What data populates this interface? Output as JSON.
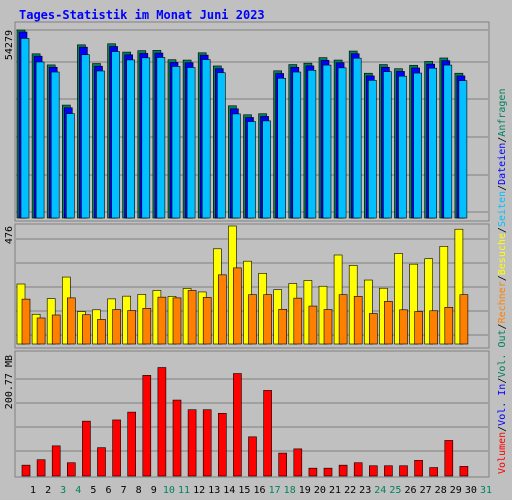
{
  "title": "Tages-Statistik im Monat Juni 2023",
  "colors": {
    "background": "#c0c0c0",
    "title": "#0000ff",
    "anfragen": "#00805f",
    "dateien": "#0000ff",
    "seiten": "#00c0ff",
    "besuche": "#ffff00",
    "rechner": "#ff8000",
    "volumen": "#ff0000",
    "weekend_label": "#00805f",
    "weekday_label": "#000000"
  },
  "right_legend": {
    "top": [
      {
        "text": "Anfragen",
        "color": "#00805f"
      },
      {
        "text": "/",
        "color": "#000000"
      },
      {
        "text": "Dateien",
        "color": "#0000ff"
      },
      {
        "text": "/",
        "color": "#000000"
      },
      {
        "text": "Seiten",
        "color": "#00c0ff"
      },
      {
        "text": "/",
        "color": "#000000"
      },
      {
        "text": "Besuche",
        "color": "#ffff00"
      },
      {
        "text": "/",
        "color": "#000000"
      },
      {
        "text": "Rechner",
        "color": "#ff8000"
      },
      {
        "text": "/",
        "color": "#000000"
      },
      {
        "text": "Vol. Out",
        "color": "#00805f"
      },
      {
        "text": "/",
        "color": "#000000"
      },
      {
        "text": "Vol. In",
        "color": "#0000ff"
      },
      {
        "text": "/",
        "color": "#000000"
      },
      {
        "text": "Volumen",
        "color": "#ff0000"
      }
    ]
  },
  "chart_data": {
    "type": "bar",
    "categories": [
      "1",
      "2",
      "3",
      "4",
      "5",
      "6",
      "7",
      "8",
      "9",
      "10",
      "11",
      "12",
      "13",
      "14",
      "15",
      "16",
      "17",
      "18",
      "19",
      "20",
      "21",
      "22",
      "23",
      "24",
      "25",
      "26",
      "27",
      "28",
      "29",
      "30",
      "31"
    ],
    "weekend_days": [
      "3",
      "4",
      "10",
      "11",
      "17",
      "18",
      "24",
      "25",
      "31"
    ],
    "panels": [
      {
        "id": "anfragen",
        "ymax_label": "54279",
        "ymax": 54279,
        "series": [
          {
            "name": "Anfragen",
            "color": "#00805f",
            "values": [
              54279,
              47400,
              44200,
              32600,
              50000,
              44600,
              50300,
              47900,
              48300,
              48400,
              45700,
              45600,
              47700,
              43900,
              32400,
              29800,
              30100,
              42500,
              44300,
              44700,
              46300,
              45600,
              48200,
              41800,
              44300,
              43100,
              44100,
              45200,
              46200,
              41800,
              0
            ]
          },
          {
            "name": "Dateien",
            "color": "#0000ff",
            "values": [
              54279,
              47300,
              44100,
              32400,
              49900,
              44400,
              50100,
              47700,
              48100,
              48200,
              45500,
              45400,
              47600,
              43700,
              32100,
              29600,
              29900,
              42300,
              44100,
              44500,
              46100,
              45400,
              48000,
              41600,
              44100,
              42900,
              43900,
              45000,
              46000,
              41600,
              0
            ]
          },
          {
            "name": "Seiten",
            "color": "#00c0ff",
            "values": [
              53000,
              46200,
              43300,
              31300,
              48300,
              43600,
              49200,
              46800,
              47400,
              47500,
              44900,
              44600,
              46900,
              43100,
              31200,
              29000,
              29200,
              41500,
              43300,
              43800,
              45300,
              44500,
              47300,
              40900,
              43400,
              42100,
              43000,
              44400,
              45300,
              40800,
              0
            ]
          }
        ]
      },
      {
        "id": "besuche",
        "ymax_label": "476",
        "ymax": 476,
        "series": [
          {
            "name": "Besuche",
            "color": "#ffff00",
            "values": [
              242,
              120,
              183,
              270,
              131,
              138,
              182,
              193,
              200,
              216,
              192,
              224,
              210,
              384,
              476,
              334,
              285,
              219,
              244,
              256,
              233,
              359,
              317,
              258,
              225,
              365,
              322,
              344,
              394,
              463,
              0
            ]
          },
          {
            "name": "Rechner",
            "color": "#ff8000",
            "values": [
              181,
              105,
              117,
              186,
              118,
              99,
              139,
              135,
              144,
              189,
              186,
              216,
              188,
              279,
              307,
              199,
              199,
              140,
              185,
              153,
              139,
              199,
              192,
              123,
              172,
              138,
              131,
              134,
              148,
              199,
              0
            ]
          }
        ]
      },
      {
        "id": "volumen",
        "ymax_label": "200.77 MB",
        "ymax": 200.77,
        "series": [
          {
            "name": "Volumen",
            "color": "#ff0000",
            "values": [
              18,
              27,
              50,
              22,
              91,
              47,
              93,
              106,
              167,
              180,
              126,
              110,
              110,
              104,
              170,
              65,
              142,
              38,
              45,
              13,
              13,
              18,
              22,
              17,
              17,
              17,
              26,
              14,
              59,
              16,
              0
            ]
          }
        ]
      }
    ]
  }
}
